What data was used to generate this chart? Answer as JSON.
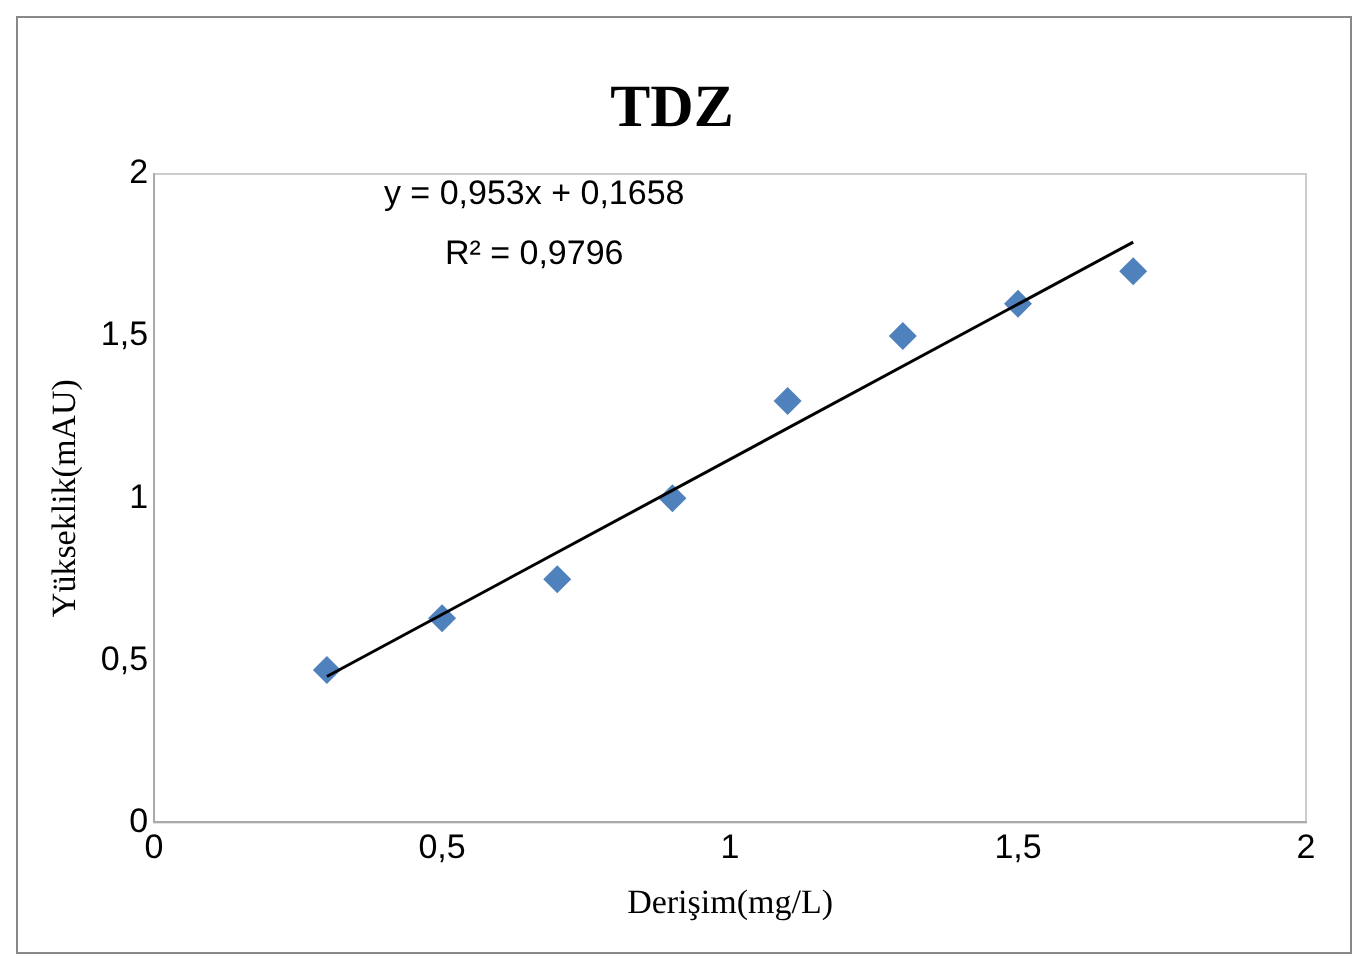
{
  "chart_data": {
    "type": "scatter",
    "title": "TDZ",
    "xlabel": "Derişim(mg/L)",
    "ylabel": "Yükseklik(mAU)",
    "annotations": [
      "y = 0,953x + 0,1658",
      "R² = 0,9796"
    ],
    "xlim": [
      0,
      2
    ],
    "xticks": [
      {
        "value": 0,
        "label": "0"
      },
      {
        "value": 0.5,
        "label": "0,5"
      },
      {
        "value": 1,
        "label": "1"
      },
      {
        "value": 1.5,
        "label": "1,5"
      },
      {
        "value": 2,
        "label": "2"
      }
    ],
    "ylim": [
      0,
      2
    ],
    "yticks": [
      {
        "value": 0,
        "label": "0"
      },
      {
        "value": 0.5,
        "label": "0,5"
      },
      {
        "value": 1,
        "label": "1"
      },
      {
        "value": 1.5,
        "label": "1,5"
      },
      {
        "value": 2,
        "label": "2"
      }
    ],
    "grid": false,
    "legend": false,
    "marker": "diamond",
    "series": [
      {
        "type": "scatter",
        "color": "#4f81bd",
        "x": [
          0.3,
          0.5,
          0.7,
          0.9,
          1.1,
          1.3,
          1.5,
          1.7
        ],
        "values": [
          0.47,
          0.63,
          0.75,
          1.0,
          1.3,
          1.5,
          1.6,
          1.7
        ]
      },
      {
        "type": "line",
        "color": "#000000",
        "marker": "none",
        "x": [
          0.3,
          1.7
        ],
        "values": [
          0.45,
          1.79
        ]
      }
    ]
  }
}
